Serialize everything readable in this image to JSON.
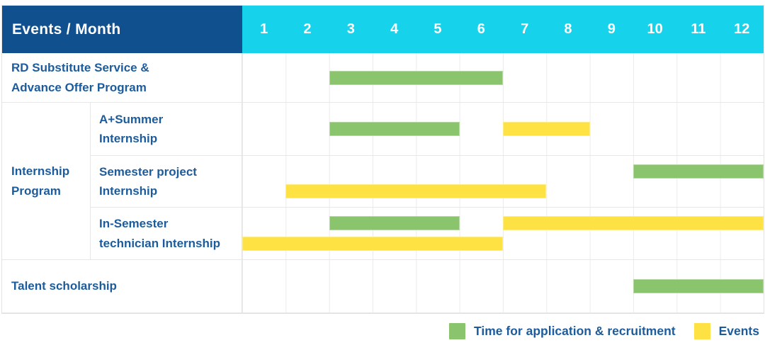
{
  "colors": {
    "header_bg": "#10508e",
    "months_bg": "#16d3eb",
    "green": "#8ac46d",
    "yellow": "#fee243",
    "label_text": "#1d5c9c",
    "gridline": "#ececec"
  },
  "header": {
    "label": "Events / Month",
    "months": [
      "1",
      "2",
      "3",
      "4",
      "5",
      "6",
      "7",
      "8",
      "9",
      "10",
      "11",
      "12"
    ]
  },
  "gantt": {
    "group_label": "Internship\nProgram",
    "rows": [
      {
        "label": "RD Substitute Service &\nAdvance Offer Program",
        "bars": [
          {
            "color": "green",
            "start": 3,
            "end": 6,
            "line": "center"
          }
        ]
      },
      {
        "label": "A+Summer\nInternship",
        "bars": [
          {
            "color": "green",
            "start": 3,
            "end": 5,
            "line": "center"
          },
          {
            "color": "yellow",
            "start": 7,
            "end": 8,
            "line": "center"
          }
        ]
      },
      {
        "label": "Semester project\nInternship",
        "bars": [
          {
            "color": "green",
            "start": 10,
            "end": 12,
            "line": "top"
          },
          {
            "color": "yellow",
            "start": 2,
            "end": 7,
            "line": "bottom"
          }
        ]
      },
      {
        "label": "In-Semester\ntechnician Internship",
        "bars": [
          {
            "color": "green",
            "start": 3,
            "end": 5,
            "line": "top"
          },
          {
            "color": "yellow",
            "start": 7,
            "end": 12,
            "line": "top"
          },
          {
            "color": "yellow",
            "start": 1,
            "end": 6,
            "line": "bottom"
          }
        ]
      },
      {
        "label": "Talent scholarship",
        "bars": [
          {
            "color": "green",
            "start": 10,
            "end": 12,
            "line": "center"
          }
        ]
      }
    ]
  },
  "legend": {
    "items": [
      {
        "color": "green",
        "label": "Time for application & recruitment"
      },
      {
        "color": "yellow",
        "label": "Events"
      }
    ]
  },
  "chart_data": {
    "type": "table",
    "title": "Events / Month",
    "x_axis": {
      "label": "Month",
      "ticks": [
        1,
        2,
        3,
        4,
        5,
        6,
        7,
        8,
        9,
        10,
        11,
        12
      ]
    },
    "legend": [
      "Time for application & recruitment (green)",
      "Events (yellow)"
    ],
    "rows": [
      {
        "group": null,
        "event": "RD Substitute Service & Advance Offer Program",
        "application_recruitment_months": [
          [
            3,
            6
          ]
        ],
        "events_months": []
      },
      {
        "group": "Internship Program",
        "event": "A+Summer Internship",
        "application_recruitment_months": [
          [
            3,
            5
          ]
        ],
        "events_months": [
          [
            7,
            8
          ]
        ]
      },
      {
        "group": "Internship Program",
        "event": "Semester project Internship",
        "application_recruitment_months": [
          [
            10,
            12
          ]
        ],
        "events_months": [
          [
            2,
            7
          ]
        ]
      },
      {
        "group": "Internship Program",
        "event": "In-Semester technician Internship",
        "application_recruitment_months": [
          [
            3,
            5
          ]
        ],
        "events_months": [
          [
            7,
            12
          ],
          [
            1,
            6
          ]
        ]
      },
      {
        "group": null,
        "event": "Talent scholarship",
        "application_recruitment_months": [
          [
            10,
            12
          ]
        ],
        "events_months": []
      }
    ]
  }
}
